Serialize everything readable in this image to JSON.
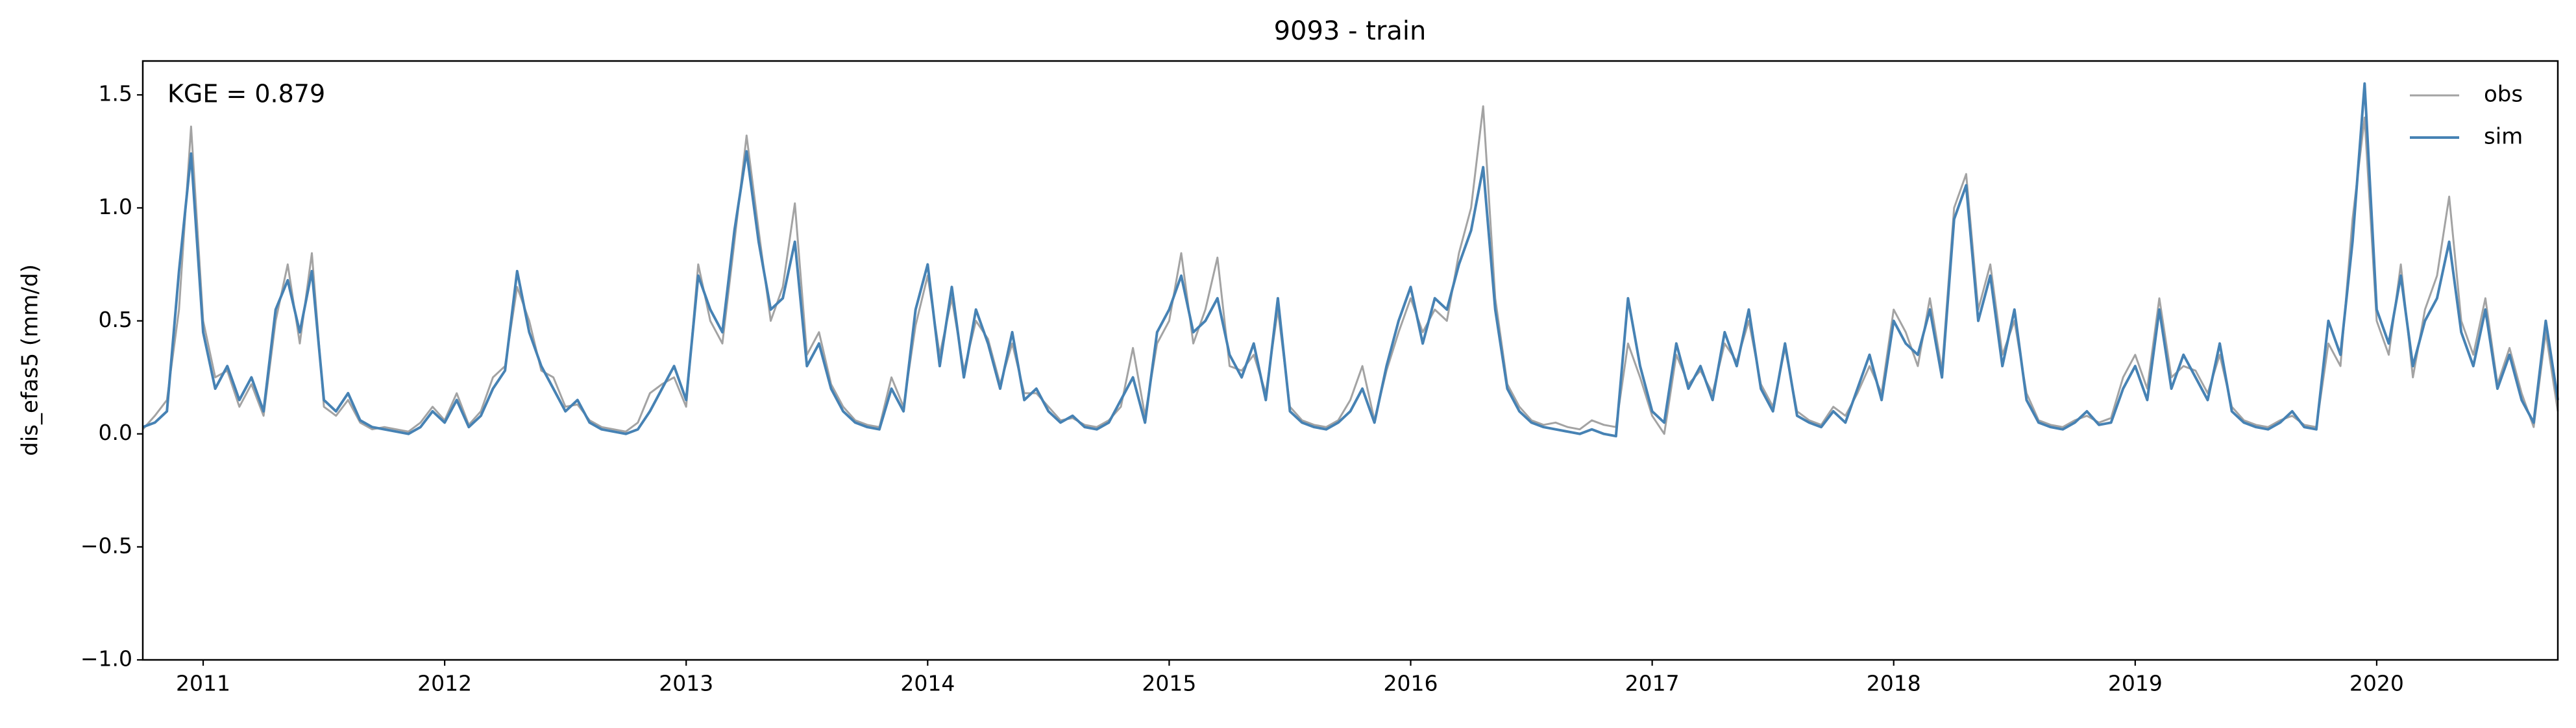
{
  "chart_data": {
    "type": "line",
    "title": "9093 - train",
    "ylabel": "dis_efas5 (mm/d)",
    "annotation": "KGE = 0.879",
    "legend": "upper right",
    "xlim": [
      2010.75,
      2020.75
    ],
    "xticks": [
      2011,
      2012,
      2013,
      2014,
      2015,
      2016,
      2017,
      2018,
      2019,
      2020
    ],
    "ylim": [
      -1,
      1.65
    ],
    "yticks": [
      {
        "value": -1,
        "label": "−1.0"
      },
      {
        "value": -0.5,
        "label": "−0.5"
      },
      {
        "value": 0,
        "label": "0.0"
      },
      0.5,
      {
        "value": 1,
        "label": "1.0"
      },
      1.5
    ],
    "x": [
      2010.75,
      2010.8,
      2010.85,
      2010.9,
      2010.95,
      2011,
      2011.05,
      2011.1,
      2011.15,
      2011.2,
      2011.25,
      2011.3,
      2011.35,
      2011.4,
      2011.45,
      2011.5,
      2011.55,
      2011.6,
      2011.65,
      2011.7,
      2011.75,
      2011.8,
      2011.85,
      2011.9,
      2011.95,
      2012,
      2012.05,
      2012.1,
      2012.15,
      2012.2,
      2012.25,
      2012.3,
      2012.35,
      2012.4,
      2012.45,
      2012.5,
      2012.55,
      2012.6,
      2012.65,
      2012.7,
      2012.75,
      2012.8,
      2012.85,
      2012.9,
      2012.95,
      2013,
      2013.05,
      2013.1,
      2013.15,
      2013.2,
      2013.25,
      2013.3,
      2013.35,
      2013.4,
      2013.45,
      2013.5,
      2013.55,
      2013.6,
      2013.65,
      2013.7,
      2013.75,
      2013.8,
      2013.85,
      2013.9,
      2013.95,
      2014,
      2014.05,
      2014.1,
      2014.15,
      2014.2,
      2014.25,
      2014.3,
      2014.35,
      2014.4,
      2014.45,
      2014.5,
      2014.55,
      2014.6,
      2014.65,
      2014.7,
      2014.75,
      2014.8,
      2014.85,
      2014.9,
      2014.95,
      2015,
      2015.05,
      2015.1,
      2015.15,
      2015.2,
      2015.25,
      2015.3,
      2015.35,
      2015.4,
      2015.45,
      2015.5,
      2015.55,
      2015.6,
      2015.65,
      2015.7,
      2015.75,
      2015.8,
      2015.85,
      2015.9,
      2015.95,
      2016,
      2016.05,
      2016.1,
      2016.15,
      2016.2,
      2016.25,
      2016.3,
      2016.35,
      2016.4,
      2016.45,
      2016.5,
      2016.55,
      2016.6,
      2016.65,
      2016.7,
      2016.75,
      2016.8,
      2016.85,
      2016.9,
      2016.95,
      2017,
      2017.05,
      2017.1,
      2017.15,
      2017.2,
      2017.25,
      2017.3,
      2017.35,
      2017.4,
      2017.45,
      2017.5,
      2017.55,
      2017.6,
      2017.65,
      2017.7,
      2017.75,
      2017.8,
      2017.85,
      2017.9,
      2017.95,
      2018,
      2018.05,
      2018.1,
      2018.15,
      2018.2,
      2018.25,
      2018.3,
      2018.35,
      2018.4,
      2018.45,
      2018.5,
      2018.55,
      2018.6,
      2018.65,
      2018.7,
      2018.75,
      2018.8,
      2018.85,
      2018.9,
      2018.95,
      2019,
      2019.05,
      2019.1,
      2019.15,
      2019.2,
      2019.25,
      2019.3,
      2019.35,
      2019.4,
      2019.45,
      2019.5,
      2019.55,
      2019.6,
      2019.65,
      2019.7,
      2019.75,
      2019.8,
      2019.85,
      2019.9,
      2019.95,
      2020,
      2020.05,
      2020.1,
      2020.15,
      2020.2,
      2020.25,
      2020.3,
      2020.35,
      2020.4,
      2020.45,
      2020.5,
      2020.55,
      2020.6,
      2020.65,
      2020.7,
      2020.75
    ],
    "series": [
      {
        "name": "obs",
        "color": "#a3a3a3",
        "values": [
          0.02,
          0.08,
          0.15,
          0.55,
          1.36,
          0.5,
          0.25,
          0.28,
          0.12,
          0.22,
          0.08,
          0.5,
          0.75,
          0.4,
          0.8,
          0.12,
          0.08,
          0.15,
          0.05,
          0.02,
          0.03,
          0.02,
          0.01,
          0.05,
          0.12,
          0.06,
          0.18,
          0.04,
          0.1,
          0.25,
          0.3,
          0.65,
          0.5,
          0.28,
          0.25,
          0.12,
          0.13,
          0.06,
          0.03,
          0.02,
          0.01,
          0.05,
          0.18,
          0.22,
          0.25,
          0.12,
          0.75,
          0.5,
          0.4,
          0.85,
          1.32,
          0.9,
          0.5,
          0.65,
          1.02,
          0.35,
          0.45,
          0.22,
          0.12,
          0.06,
          0.04,
          0.03,
          0.25,
          0.12,
          0.48,
          0.7,
          0.35,
          0.6,
          0.28,
          0.5,
          0.42,
          0.22,
          0.4,
          0.18,
          0.18,
          0.12,
          0.06,
          0.07,
          0.04,
          0.03,
          0.06,
          0.12,
          0.38,
          0.08,
          0.4,
          0.5,
          0.8,
          0.4,
          0.55,
          0.78,
          0.3,
          0.28,
          0.35,
          0.18,
          0.55,
          0.12,
          0.06,
          0.04,
          0.03,
          0.06,
          0.15,
          0.3,
          0.06,
          0.28,
          0.45,
          0.6,
          0.45,
          0.55,
          0.5,
          0.8,
          1.0,
          1.45,
          0.6,
          0.22,
          0.12,
          0.06,
          0.04,
          0.05,
          0.03,
          0.02,
          0.06,
          0.04,
          0.03,
          0.4,
          0.25,
          0.08,
          0.0,
          0.35,
          0.22,
          0.28,
          0.18,
          0.4,
          0.32,
          0.5,
          0.22,
          0.12,
          0.38,
          0.1,
          0.06,
          0.04,
          0.12,
          0.08,
          0.18,
          0.3,
          0.18,
          0.55,
          0.45,
          0.3,
          0.6,
          0.28,
          1.0,
          1.15,
          0.55,
          0.75,
          0.35,
          0.5,
          0.18,
          0.06,
          0.04,
          0.03,
          0.06,
          0.08,
          0.05,
          0.07,
          0.25,
          0.35,
          0.2,
          0.6,
          0.25,
          0.3,
          0.28,
          0.18,
          0.35,
          0.12,
          0.06,
          0.04,
          0.03,
          0.06,
          0.08,
          0.04,
          0.03,
          0.4,
          0.3,
          0.95,
          1.4,
          0.5,
          0.35,
          0.75,
          0.25,
          0.55,
          0.7,
          1.05,
          0.5,
          0.35,
          0.6,
          0.22,
          0.38,
          0.18,
          0.03,
          0.45,
          0.1
        ]
      },
      {
        "name": "sim",
        "color": "#4682b4",
        "values": [
          0.03,
          0.05,
          0.1,
          0.72,
          1.24,
          0.45,
          0.2,
          0.3,
          0.15,
          0.25,
          0.1,
          0.55,
          0.68,
          0.45,
          0.72,
          0.15,
          0.1,
          0.18,
          0.06,
          0.03,
          0.02,
          0.01,
          0.0,
          0.03,
          0.1,
          0.05,
          0.15,
          0.03,
          0.08,
          0.2,
          0.28,
          0.72,
          0.45,
          0.3,
          0.2,
          0.1,
          0.15,
          0.05,
          0.02,
          0.01,
          0.0,
          0.02,
          0.1,
          0.2,
          0.3,
          0.15,
          0.7,
          0.55,
          0.45,
          0.9,
          1.25,
          0.85,
          0.55,
          0.6,
          0.85,
          0.3,
          0.4,
          0.2,
          0.1,
          0.05,
          0.03,
          0.02,
          0.2,
          0.1,
          0.55,
          0.75,
          0.3,
          0.65,
          0.25,
          0.55,
          0.4,
          0.2,
          0.45,
          0.15,
          0.2,
          0.1,
          0.05,
          0.08,
          0.03,
          0.02,
          0.05,
          0.15,
          0.25,
          0.05,
          0.45,
          0.55,
          0.7,
          0.45,
          0.5,
          0.6,
          0.35,
          0.25,
          0.4,
          0.15,
          0.6,
          0.1,
          0.05,
          0.03,
          0.02,
          0.05,
          0.1,
          0.2,
          0.05,
          0.3,
          0.5,
          0.65,
          0.4,
          0.6,
          0.55,
          0.75,
          0.9,
          1.18,
          0.55,
          0.2,
          0.1,
          0.05,
          0.03,
          0.02,
          0.01,
          0.0,
          0.02,
          0.0,
          -0.01,
          0.6,
          0.3,
          0.1,
          0.05,
          0.4,
          0.2,
          0.3,
          0.15,
          0.45,
          0.3,
          0.55,
          0.2,
          0.1,
          0.4,
          0.08,
          0.05,
          0.03,
          0.1,
          0.05,
          0.2,
          0.35,
          0.15,
          0.5,
          0.4,
          0.35,
          0.55,
          0.25,
          0.95,
          1.1,
          0.5,
          0.7,
          0.3,
          0.55,
          0.15,
          0.05,
          0.03,
          0.02,
          0.05,
          0.1,
          0.04,
          0.05,
          0.2,
          0.3,
          0.15,
          0.55,
          0.2,
          0.35,
          0.25,
          0.15,
          0.4,
          0.1,
          0.05,
          0.03,
          0.02,
          0.05,
          0.1,
          0.03,
          0.02,
          0.5,
          0.35,
          0.85,
          1.55,
          0.55,
          0.4,
          0.7,
          0.3,
          0.5,
          0.6,
          0.85,
          0.45,
          0.3,
          0.55,
          0.2,
          0.35,
          0.15,
          0.05,
          0.5,
          0.15
        ]
      }
    ]
  }
}
